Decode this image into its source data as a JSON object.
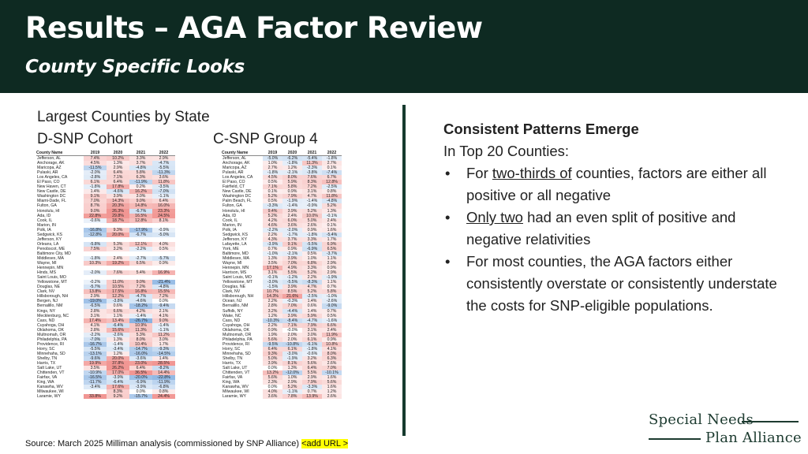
{
  "header": {
    "title": "Results – AGA Factor Review",
    "subtitle": "County Specific Looks"
  },
  "left": {
    "title": "Largest Counties by State",
    "dsnp_label": "D-SNP Cohort",
    "csnp_label": "C-SNP Group 4"
  },
  "colors": {
    "header_bg": "#0e2a22",
    "positive": "#f2b8b5",
    "negative": "#a9c8e8",
    "divider": "#163a2e"
  },
  "dsnp_table": {
    "columns": [
      "County Name",
      "2019",
      "2020",
      "2021",
      "2022"
    ],
    "rows": [
      [
        "Jefferson, AL",
        "7.4%",
        "10.2%",
        "3.3%",
        "2.9%"
      ],
      [
        "Anchorage, AK",
        "4.5%",
        "1.3%",
        "3.7%",
        "-4.7%"
      ],
      [
        "Maricopa, AZ",
        "-11.5%",
        "2.9%",
        "-4.8%",
        "-5.5%"
      ],
      [
        "Pulaski, AR",
        "-2.0%",
        "6.4%",
        "5.8%",
        "-11.3%"
      ],
      [
        "Los Angeles, CA",
        "-2.8%",
        "7.1%",
        "6.3%",
        "3.6%"
      ],
      [
        "El Paso, CO",
        "6.1%",
        "6.4%",
        "-11.9%",
        "11.8%"
      ],
      [
        "New Haven, CT",
        "-1.8%",
        "17.8%",
        "0.2%",
        "-3.5%"
      ],
      [
        "New Castle, DE",
        "1.4%",
        "-4.6%",
        "16.2%",
        "-7.0%"
      ],
      [
        "Washington DC",
        "9.1%",
        "3.9%",
        "3.0%",
        "-1.1%"
      ],
      [
        "Miami-Dade, FL",
        "7.0%",
        "14.3%",
        "9.0%",
        "6.4%"
      ],
      [
        "Fulton, GA",
        "8.7%",
        "20.3%",
        "14.8%",
        "16.0%"
      ],
      [
        "Honolulu, HI",
        "9.0%",
        "26.3%",
        "-6.7%",
        "23.3%"
      ],
      [
        "Ada, ID",
        "22.8%",
        "29.8%",
        "16.5%",
        "24.5%"
      ],
      [
        "Cook, IL",
        "-0.6%",
        "18.7%",
        "12.8%",
        "8.1%"
      ],
      [
        "Marion, IN",
        "",
        "",
        "",
        ""
      ],
      [
        "Polk, IA",
        "-16.8%",
        "9.3%",
        "-17.9%",
        "-0.9%"
      ],
      [
        "Sedgwick, KS",
        "-12.8%",
        "20.0%",
        "-6.7%",
        "-5.0%"
      ],
      [
        "Jefferson, KY",
        "",
        "",
        "",
        ""
      ],
      [
        "Orleans, LA",
        "-5.8%",
        "5.3%",
        "12.1%",
        "4.0%"
      ],
      [
        "Penobscot, ME",
        "7.5%",
        "3.2%",
        "-2.2%",
        "0.5%"
      ],
      [
        "Baltimore City, MD",
        "",
        "",
        "",
        ""
      ],
      [
        "Middlesex, MA",
        "-1.8%",
        "2.4%",
        "-2.7%",
        "-5.7%"
      ],
      [
        "Wayne, MI",
        "10.3%",
        "19.2%",
        "6.5%",
        "0.9%"
      ],
      [
        "Hennepin, MN",
        "",
        "",
        "",
        ""
      ],
      [
        "Hinds, MS",
        "-2.0%",
        "7.6%",
        "5.4%",
        "16.9%"
      ],
      [
        "Saint Louis, MO",
        "",
        "",
        "",
        ""
      ],
      [
        "Yellowstone, MT",
        "-0.2%",
        "11.0%",
        "9.0%",
        "-21.4%"
      ],
      [
        "Douglas, NE",
        "-5.7%",
        "10.5%",
        "7.2%",
        "-4.8%"
      ],
      [
        "Clark, NV",
        "13.8%",
        "17.5%",
        "16.8%",
        "15.5%"
      ],
      [
        "Hillsborough, NH",
        "2.9%",
        "12.2%",
        "-4.7%",
        "7.2%"
      ],
      [
        "Bergen, NJ",
        "-19.0%",
        "-3.8%",
        "-4.6%",
        "0.0%"
      ],
      [
        "Bernalillo, NM",
        "-6.5%",
        "0.6%",
        "-18.2%",
        "-9.4%"
      ],
      [
        "Kings, NY",
        "2.8%",
        "6.6%",
        "4.2%",
        "2.1%"
      ],
      [
        "Mecklenburg, NC",
        "3.1%",
        "1.1%",
        "-1.4%",
        "4.1%"
      ],
      [
        "Cass, ND",
        "17.4%",
        "13.4%",
        "-26.7%",
        "9.0%"
      ],
      [
        "Cuyahoga, OH",
        "4.1%",
        "-6.4%",
        "10.9%",
        "-1.4%"
      ],
      [
        "Oklahoma, OK",
        "2.8%",
        "15.6%",
        "11.3%",
        "-1.1%"
      ],
      [
        "Multnomah, OR",
        "-2.2%",
        "-2.6%",
        "5.3%",
        "11.2%"
      ],
      [
        "Philadelphia, PA",
        "-7.0%",
        "1.3%",
        "8.0%",
        "3.0%"
      ],
      [
        "Providence, RI",
        "-16.7%",
        "-1.4%",
        "10.4%",
        "1.7%"
      ],
      [
        "Horry, SC",
        "-5.5%",
        "-3.4%",
        "-14.7%",
        "-9.3%"
      ],
      [
        "Minnehaha, SD",
        "-13.1%",
        "1.2%",
        "-16.0%",
        "-14.5%"
      ],
      [
        "Shelby, TN",
        "-9.6%",
        "20.0%",
        "-3.6%",
        "1.4%"
      ],
      [
        "Harris, TX",
        "19.9%",
        "37.8%",
        "23.0%",
        "28.5%"
      ],
      [
        "Salt Lake, UT",
        "3.5%",
        "26.2%",
        "6.4%",
        "-8.2%"
      ],
      [
        "Chittenden, VT",
        "-10.9%",
        "17.0%",
        "36.5%",
        "14.4%"
      ],
      [
        "Fairfax, VA",
        "-16.5%",
        "-3.9%",
        "-20.0%",
        "-22.8%"
      ],
      [
        "King, WA",
        "-11.7%",
        "-6.4%",
        "-6.9%",
        "-11.9%"
      ],
      [
        "Kanawha, WV",
        "-3.4%",
        "17.6%",
        "-3.9%",
        "-6.8%"
      ],
      [
        "Milwaukee, WI",
        "",
        "8.3%",
        "0.0%",
        "0.8%"
      ],
      [
        "Laramie, WY",
        "33.8%",
        "9.2%",
        "-15.7%",
        "24.4%"
      ]
    ]
  },
  "csnp_table": {
    "columns": [
      "County Name",
      "2019",
      "2020",
      "2021",
      "2022"
    ],
    "rows": [
      [
        "Jefferson, AL",
        "-5.0%",
        "-6.2%",
        "-5.4%",
        "-1.8%"
      ],
      [
        "Anchorage, AK",
        "1.0%",
        "-1.8%",
        "11.3%",
        "2.7%"
      ],
      [
        "Maricopa, AZ",
        "2.7%",
        "1.2%",
        "-2.3%",
        "0.1%"
      ],
      [
        "Pulaski, AR",
        "-1.8%",
        "-2.1%",
        "-3.8%",
        "-7.4%"
      ],
      [
        "Los Angeles, CA",
        "4.5%",
        "8.0%",
        "7.6%",
        "6.7%"
      ],
      [
        "El Paso, CO",
        "0.5%",
        "5.9%",
        "8.3%",
        "12.8%"
      ],
      [
        "Fairfield, CT",
        "7.1%",
        "5.8%",
        "7.2%",
        "-2.5%"
      ],
      [
        "New Castle, DE",
        "0.1%",
        "0.9%",
        "3.1%",
        "0.8%"
      ],
      [
        "Washington DC",
        "5.2%",
        "7.9%",
        "4.7%",
        "11.8%"
      ],
      [
        "Palm Beach, FL",
        "0.5%",
        "-1.9%",
        "-1.4%",
        "-4.8%"
      ],
      [
        "Fulton, GA",
        "-3.3%",
        "-1.4%",
        "-0.9%",
        "5.2%"
      ],
      [
        "Honolulu, HI",
        "9.4%",
        "3.9%",
        "5.2%",
        "1.3%"
      ],
      [
        "Ada, ID",
        "5.2%",
        "2.4%",
        "10.0%",
        "-0.1%"
      ],
      [
        "Cook, IL",
        "4.2%",
        "6.0%",
        "5.0%",
        "2.4%"
      ],
      [
        "Marion, IN",
        "4.6%",
        "3.6%",
        "2.6%",
        "0.1%"
      ],
      [
        "Polk, IA",
        "-2.2%",
        "-2.0%",
        "0.9%",
        "1.6%"
      ],
      [
        "Sedgwick, KS",
        "2.2%",
        "-1.7%",
        "-1.8%",
        "-5.4%"
      ],
      [
        "Jefferson, KY",
        "4.3%",
        "3.7%",
        "3.3%",
        "1.7%"
      ],
      [
        "Lafayette, LA",
        "-3.9%",
        "9.1%",
        "-5.5%",
        "6.9%"
      ],
      [
        "York, ME",
        "0.7%",
        "0.9%",
        "-6.9%",
        "6.5%"
      ],
      [
        "Baltimore, MD",
        "-1.0%",
        "-2.1%",
        "0.5%",
        "-3.7%"
      ],
      [
        "Middlesex, MA",
        "1.3%",
        "3.9%",
        "1.0%",
        "1.1%"
      ],
      [
        "Wayne, MI",
        "3.5%",
        "7.0%",
        "6.8%",
        "2.9%"
      ],
      [
        "Hennepin, MN",
        "17.1%",
        "4.9%",
        "3.3%",
        "0.9%"
      ],
      [
        "Harrison, MS",
        "3.1%",
        "5.5%",
        "5.2%",
        "2.9%"
      ],
      [
        "Saint Louis, MO",
        "-0.1%",
        "-1.2%",
        "2.2%",
        "-1.9%"
      ],
      [
        "Yellowstone, MT",
        "-3.0%",
        "-5.5%",
        "-8.3%",
        "1.1%"
      ],
      [
        "Douglas, NE",
        "-1.5%",
        "3.9%",
        "4.7%",
        "0.7%"
      ],
      [
        "Clark, NV",
        "10.7%",
        "8.5%",
        "5.2%",
        "5.8%"
      ],
      [
        "Hillsborough, NH",
        "14.3%",
        "21.6%",
        "-2.5%",
        "-1.0%"
      ],
      [
        "Ocean, NJ",
        "2.2%",
        "-0.3%",
        "1.4%",
        "-2.6%"
      ],
      [
        "Bernalillo, NM",
        "2.8%",
        "7.0%",
        "0.6%",
        "-9.0%"
      ],
      [
        "Suffolk, NY",
        "3.2%",
        "-4.4%",
        "1.4%",
        "0.7%"
      ],
      [
        "Wake, NC",
        "1.2%",
        "3.9%",
        "5.9%",
        "0.5%"
      ],
      [
        "Cass, ND",
        "-10.3%",
        "-8.4%",
        "-4.7%",
        "-1.6%"
      ],
      [
        "Cuyahoga, OH",
        "2.2%",
        "7.1%",
        "7.9%",
        "6.6%"
      ],
      [
        "Oklahoma, OK",
        "0.9%",
        "-0.0%",
        "3.1%",
        "2.4%"
      ],
      [
        "Multnomah, OR",
        "1.9%",
        "2.0%",
        "3.0%",
        "11.9%"
      ],
      [
        "Philadelphia, PA",
        "5.6%",
        "2.0%",
        "6.1%",
        "0.9%"
      ],
      [
        "Providence, RI",
        "-9.5%",
        "-10.8%",
        "-6.1%",
        "10.8%"
      ],
      [
        "Horry, SC",
        "6.4%",
        "6.1%",
        "-1.8%",
        "4.1%"
      ],
      [
        "Minnehaha, SD",
        "9.3%",
        "-3.0%",
        "-0.6%",
        "8.0%"
      ],
      [
        "Shelby, TN",
        "5.0%",
        "-1.9%",
        "3.2%",
        "6.3%"
      ],
      [
        "Harris, TX",
        "3.9%",
        "8.1%",
        "5.6%",
        "2.6%"
      ],
      [
        "Salt Lake, UT",
        "0.0%",
        "1.3%",
        "6.4%",
        "7.0%"
      ],
      [
        "Chittenden, VT",
        "13.2%",
        "-12.0%",
        "5.5%",
        "-10.1%"
      ],
      [
        "Fairfax, VA",
        "5.6%",
        "1.0%",
        "2.9%",
        "1.6%"
      ],
      [
        "King, WA",
        "2.3%",
        "2.9%",
        "7.9%",
        "5.6%"
      ],
      [
        "Kanawha, WV",
        "0.0%",
        "5.2%",
        "-3.3%",
        "1.6%"
      ],
      [
        "Milwaukee, WI",
        "4.0%",
        "-1.1%",
        "0.7%",
        "1.2%"
      ],
      [
        "Laramie, WY",
        "3.6%",
        "7.8%",
        "13.9%",
        "2.6%"
      ]
    ]
  },
  "right": {
    "title": "Consistent Patterns Emerge",
    "intro": "In Top 20 Counties:",
    "bullets": [
      {
        "pre": "For ",
        "u": "two-thirds of",
        "post": " counties, factors are either all positive or all negative"
      },
      {
        "pre": "",
        "u": "Only two",
        "post": " had an even split of positive and negative relativities"
      },
      {
        "pre": "",
        "u": "",
        "post": "For most counties, the AGA factors either consistently overstate or consistently understate the costs for SNP-eligible populations."
      }
    ]
  },
  "footer": {
    "source": "Source: March 2025 Milliman analysis (commissioned by SNP Alliance) ",
    "link_placeholder": "<add URL >"
  },
  "logo": {
    "line1": "Special Needs",
    "line2": "Plan Alliance"
  }
}
